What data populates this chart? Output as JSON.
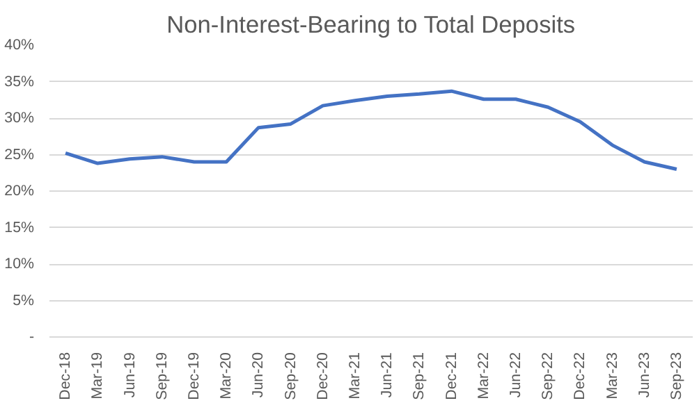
{
  "chart_data": {
    "type": "line",
    "title": "Non-Interest-Bearing to Total Deposits",
    "categories": [
      "Dec-18",
      "Mar-19",
      "Jun-19",
      "Sep-19",
      "Dec-19",
      "Mar-20",
      "Jun-20",
      "Sep-20",
      "Dec-20",
      "Mar-21",
      "Jun-21",
      "Sep-21",
      "Dec-21",
      "Mar-22",
      "Jun-22",
      "Sep-22",
      "Dec-22",
      "Mar-23",
      "Jun-23",
      "Sep-23"
    ],
    "series": [
      {
        "color": "#4472c4",
        "values": [
          25.2,
          23.8,
          24.4,
          24.7,
          24.0,
          24.0,
          28.7,
          29.2,
          31.7,
          32.4,
          33.0,
          33.3,
          33.7,
          32.6,
          32.6,
          31.5,
          29.5,
          26.3,
          24.0,
          23.0
        ]
      }
    ],
    "ylim": [
      0,
      40
    ],
    "yticks": [
      {
        "value": 0,
        "label": "-"
      },
      {
        "value": 5,
        "label": "5%"
      },
      {
        "value": 10,
        "label": "10%"
      },
      {
        "value": 15,
        "label": "15%"
      },
      {
        "value": 20,
        "label": "20%"
      },
      {
        "value": 25,
        "label": "25%"
      },
      {
        "value": 30,
        "label": "30%"
      },
      {
        "value": 35,
        "label": "35%"
      },
      {
        "value": 40,
        "label": "40%"
      }
    ],
    "grid": "y",
    "line_style": "solid"
  }
}
